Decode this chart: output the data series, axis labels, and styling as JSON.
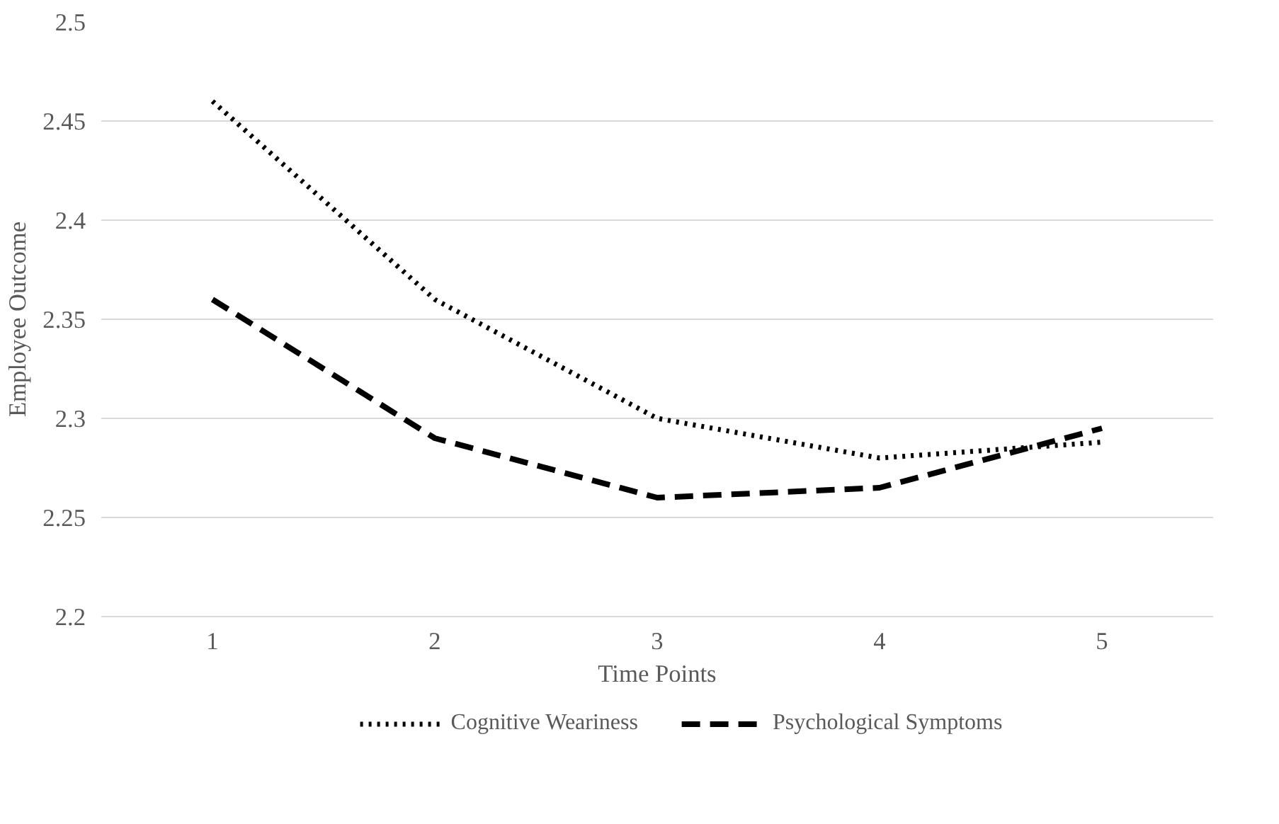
{
  "chart_data": {
    "type": "line",
    "xlabel": "Time Points",
    "ylabel": "Employee Outcome",
    "categories": [
      "1",
      "2",
      "3",
      "4",
      "5"
    ],
    "series": [
      {
        "name": "Cognitive Weariness",
        "color": "#000000",
        "line_style": "dotted",
        "values": [
          2.46,
          2.36,
          2.3,
          2.28,
          2.288
        ]
      },
      {
        "name": "Psychological Symptoms",
        "color": "#000000",
        "line_style": "dashed",
        "values": [
          2.36,
          2.29,
          2.26,
          2.265,
          2.295
        ]
      }
    ],
    "ylim": [
      2.2,
      2.5
    ],
    "yticks": [
      2.2,
      2.25,
      2.3,
      2.35,
      2.4,
      2.45,
      2.5
    ],
    "grid": "y",
    "legend": "bottom",
    "marker": "none"
  }
}
